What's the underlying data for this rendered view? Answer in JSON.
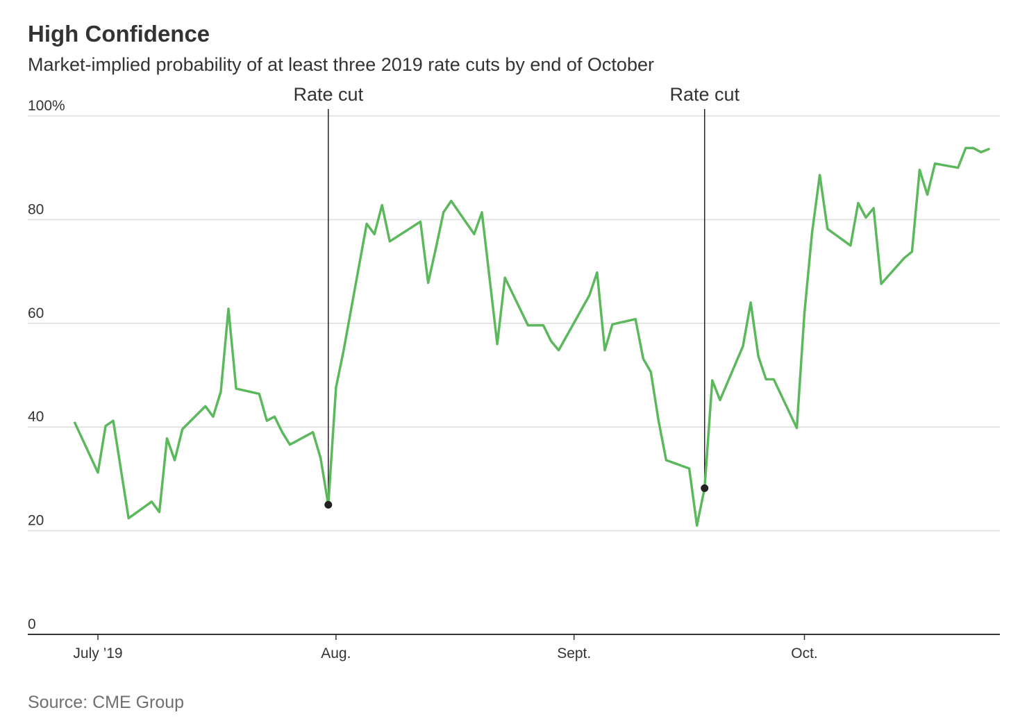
{
  "header": {
    "title": "High Confidence",
    "subtitle": "Market-implied probability of at least three 2019 rate cuts by end of October"
  },
  "footer": {
    "source": "Source: CME Group"
  },
  "colors": {
    "line": "#5cb85c",
    "grid": "#dddddd",
    "axis": "#333333",
    "marker": "#222222"
  },
  "chart_data": {
    "type": "line",
    "title": "High Confidence",
    "subtitle": "Market-implied probability of at least three 2019 rate cuts by end of October",
    "xlabel": "",
    "ylabel": "",
    "x_range": [
      "2019-06-28",
      "2019-10-25"
    ],
    "ylim": [
      0,
      100
    ],
    "y_ticks": [
      0,
      20,
      40,
      60,
      80,
      100
    ],
    "y_tick_labels": [
      "0",
      "20",
      "40",
      "60",
      "80",
      "100%"
    ],
    "x_ticks": [
      {
        "date": "2019-07-01",
        "label": "July ’19"
      },
      {
        "date": "2019-08-01",
        "label": "Aug."
      },
      {
        "date": "2019-09-01",
        "label": "Sept."
      },
      {
        "date": "2019-10-01",
        "label": "Oct."
      }
    ],
    "grid": true,
    "legend": "none",
    "series": [
      {
        "points": [
          [
            "2019-06-28",
            40.8
          ],
          [
            "2019-07-01",
            31.2
          ],
          [
            "2019-07-02",
            40.2
          ],
          [
            "2019-07-03",
            41.2
          ],
          [
            "2019-07-05",
            22.4
          ],
          [
            "2019-07-08",
            25.6
          ],
          [
            "2019-07-09",
            23.6
          ],
          [
            "2019-07-10",
            37.8
          ],
          [
            "2019-07-11",
            33.6
          ],
          [
            "2019-07-12",
            39.6
          ],
          [
            "2019-07-15",
            44.0
          ],
          [
            "2019-07-16",
            42.0
          ],
          [
            "2019-07-17",
            46.8
          ],
          [
            "2019-07-18",
            62.8
          ],
          [
            "2019-07-19",
            47.4
          ],
          [
            "2019-07-22",
            46.4
          ],
          [
            "2019-07-23",
            41.2
          ],
          [
            "2019-07-24",
            42.0
          ],
          [
            "2019-07-25",
            39.0
          ],
          [
            "2019-07-26",
            36.6
          ],
          [
            "2019-07-29",
            39.0
          ],
          [
            "2019-07-30",
            34.0
          ],
          [
            "2019-07-31",
            25.0
          ],
          [
            "2019-08-01",
            47.6
          ],
          [
            "2019-08-02",
            54.8
          ],
          [
            "2019-08-05",
            79.2
          ],
          [
            "2019-08-06",
            77.2
          ],
          [
            "2019-08-07",
            82.8
          ],
          [
            "2019-08-08",
            75.8
          ],
          [
            "2019-08-12",
            79.6
          ],
          [
            "2019-08-13",
            67.8
          ],
          [
            "2019-08-14",
            74.4
          ],
          [
            "2019-08-15",
            81.4
          ],
          [
            "2019-08-16",
            83.6
          ],
          [
            "2019-08-19",
            77.2
          ],
          [
            "2019-08-20",
            81.4
          ],
          [
            "2019-08-22",
            56.0
          ],
          [
            "2019-08-23",
            68.8
          ],
          [
            "2019-08-26",
            59.6
          ],
          [
            "2019-08-28",
            59.6
          ],
          [
            "2019-08-29",
            56.6
          ],
          [
            "2019-08-30",
            54.8
          ],
          [
            "2019-09-03",
            65.4
          ],
          [
            "2019-09-04",
            69.8
          ],
          [
            "2019-09-05",
            54.8
          ],
          [
            "2019-09-06",
            59.8
          ],
          [
            "2019-09-09",
            60.8
          ],
          [
            "2019-09-10",
            53.2
          ],
          [
            "2019-09-11",
            50.6
          ],
          [
            "2019-09-12",
            41.2
          ],
          [
            "2019-09-13",
            33.6
          ],
          [
            "2019-09-16",
            32.0
          ],
          [
            "2019-09-17",
            21.0
          ],
          [
            "2019-09-18",
            28.2
          ],
          [
            "2019-09-19",
            49.0
          ],
          [
            "2019-09-20",
            45.2
          ],
          [
            "2019-09-23",
            55.6
          ],
          [
            "2019-09-24",
            64.0
          ],
          [
            "2019-09-25",
            53.6
          ],
          [
            "2019-09-26",
            49.2
          ],
          [
            "2019-09-27",
            49.2
          ],
          [
            "2019-09-30",
            39.8
          ],
          [
            "2019-10-01",
            62.0
          ],
          [
            "2019-10-02",
            77.6
          ],
          [
            "2019-10-03",
            88.6
          ],
          [
            "2019-10-04",
            78.2
          ],
          [
            "2019-10-07",
            75.0
          ],
          [
            "2019-10-08",
            83.2
          ],
          [
            "2019-10-09",
            80.4
          ],
          [
            "2019-10-10",
            82.2
          ],
          [
            "2019-10-11",
            67.6
          ],
          [
            "2019-10-14",
            72.6
          ],
          [
            "2019-10-15",
            73.8
          ],
          [
            "2019-10-16",
            89.6
          ],
          [
            "2019-10-17",
            84.8
          ],
          [
            "2019-10-18",
            90.8
          ],
          [
            "2019-10-21",
            90.0
          ],
          [
            "2019-10-22",
            93.8
          ],
          [
            "2019-10-23",
            93.8
          ],
          [
            "2019-10-24",
            93.0
          ],
          [
            "2019-10-25",
            93.6
          ]
        ]
      }
    ],
    "annotations": [
      {
        "label": "Rate cut",
        "date": "2019-07-31",
        "value": 25.0
      },
      {
        "label": "Rate cut",
        "date": "2019-09-18",
        "value": 28.2
      }
    ]
  }
}
